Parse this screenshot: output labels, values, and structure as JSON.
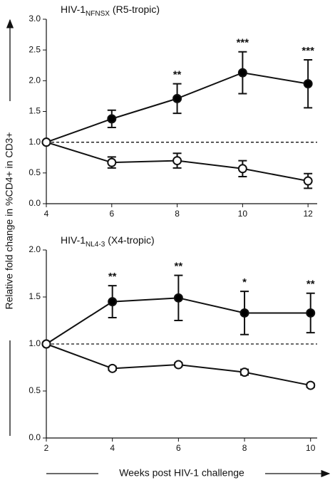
{
  "ylabel": "Relative fold change in %CD4+ in CD3+",
  "xlabel": "Weeks post HIV-1 challenge",
  "chart_data": [
    {
      "type": "line",
      "title": {
        "text": "HIV-1",
        "subscript": "NFNSX",
        "suffix": "(R5-tropic)"
      },
      "x": [
        4,
        6,
        8,
        10,
        12
      ],
      "xlim": [
        4,
        12.28
      ],
      "xticks": [
        4,
        6,
        8,
        10,
        12
      ],
      "ylim": [
        0,
        3.0
      ],
      "yticks": [
        {
          "value": 0,
          "label": "0.0"
        },
        0.5,
        {
          "value": 1,
          "label": "1.0"
        },
        1.5,
        {
          "value": 2,
          "label": "2.0"
        },
        2.5,
        {
          "value": 3,
          "label": "3.0"
        }
      ],
      "reference_line": 1.0,
      "series": [
        {
          "fill": "#000000",
          "values": [
            1.0,
            1.38,
            1.71,
            2.13,
            1.95
          ],
          "errors": [
            null,
            0.14,
            0.24,
            0.34,
            0.39
          ]
        },
        {
          "fill": "#ffffff",
          "values": [
            1.0,
            0.67,
            0.7,
            0.57,
            0.37
          ],
          "errors": [
            null,
            0.09,
            0.12,
            0.13,
            0.12
          ]
        }
      ],
      "annotations": [
        {
          "x": 8,
          "text": "**"
        },
        {
          "x": 10,
          "text": "***"
        },
        {
          "x": 12,
          "text": "***"
        }
      ]
    },
    {
      "type": "line",
      "title": {
        "text": "HIV-1",
        "subscript": "NL4-3",
        "suffix": "(X4-tropic)"
      },
      "x": [
        2,
        4,
        6,
        8,
        10
      ],
      "xlim": [
        2,
        10.2
      ],
      "xticks": [
        2,
        4,
        6,
        8,
        10
      ],
      "ylim": [
        0,
        2.0
      ],
      "yticks": [
        {
          "value": 0,
          "label": "0.0"
        },
        0.5,
        {
          "value": 1,
          "label": "1.0"
        },
        1.5,
        {
          "value": 2,
          "label": "2.0"
        }
      ],
      "reference_line": 1.0,
      "series": [
        {
          "fill": "#000000",
          "values": [
            1.0,
            1.45,
            1.49,
            1.33,
            1.33
          ],
          "errors": [
            null,
            0.17,
            0.24,
            0.23,
            0.21
          ]
        },
        {
          "fill": "#ffffff",
          "values": [
            1.0,
            0.74,
            0.78,
            0.7,
            0.56
          ],
          "errors": [
            null,
            0.02,
            0.02,
            0.03,
            0.02
          ]
        }
      ],
      "annotations": [
        {
          "x": 4,
          "text": "**"
        },
        {
          "x": 6,
          "text": "**"
        },
        {
          "x": 8,
          "text": "*"
        },
        {
          "x": 10,
          "text": "**"
        }
      ]
    }
  ]
}
